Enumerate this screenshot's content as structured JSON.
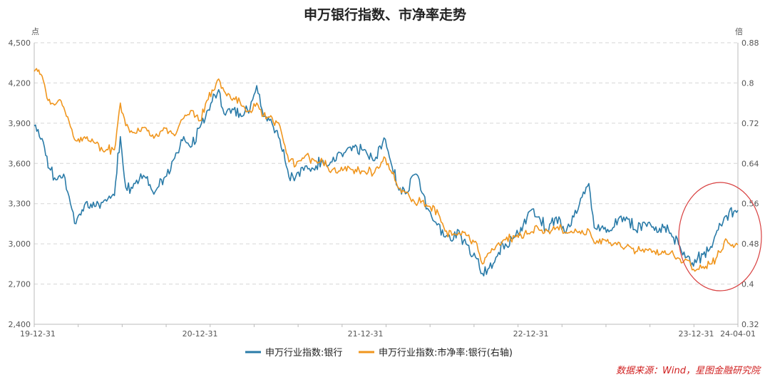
{
  "chart_data": {
    "type": "line",
    "title": "申万银行指数、市净率走势",
    "left_unit": "点",
    "right_unit": "倍",
    "x_tick_labels": [
      "19-12-31",
      "20-12-31",
      "21-12-31",
      "22-12-31",
      "23-12-31",
      "24-04-01"
    ],
    "y_left": {
      "min": 2400,
      "max": 4500,
      "ticks": [
        "2,400",
        "2,700",
        "3,000",
        "3,300",
        "3,600",
        "3,900",
        "4,200",
        "4,500"
      ]
    },
    "y_right": {
      "min": 0.32,
      "max": 0.88,
      "ticks": [
        "0.32",
        "0.4",
        "0.48",
        "0.56",
        "0.64",
        "0.72",
        "0.8",
        "0.88"
      ]
    },
    "grid": "horizontal dashed",
    "legend_position": "bottom",
    "annotation": "red circle highlighting the period 23-12-31 to 24-04-01",
    "series": [
      {
        "name": "申万行业指数:银行",
        "axis": "left",
        "color": "#2a7ba8",
        "points": [
          [
            "19-12-31",
            3880
          ],
          [
            "2020-01-20",
            3760
          ],
          [
            "2020-02-05",
            3550
          ],
          [
            "2020-02-20",
            3480
          ],
          [
            "2020-03-05",
            3520
          ],
          [
            "2020-03-20",
            3300
          ],
          [
            "2020-04-01",
            3150
          ],
          [
            "2020-04-20",
            3290
          ],
          [
            "2020-05-15",
            3280
          ],
          [
            "2020-06-05",
            3330
          ],
          [
            "2020-06-25",
            3360
          ],
          [
            "2020-07-08",
            3800
          ],
          [
            "2020-07-20",
            3420
          ],
          [
            "2020-08-10",
            3450
          ],
          [
            "2020-08-31",
            3500
          ],
          [
            "2020-09-20",
            3370
          ],
          [
            "2020-10-15",
            3500
          ],
          [
            "2020-11-05",
            3640
          ],
          [
            "2020-11-25",
            3800
          ],
          [
            "2020-12-10",
            3720
          ],
          [
            "20-12-31",
            3870
          ],
          [
            "2021-01-15",
            3990
          ],
          [
            "2021-02-10",
            4150
          ],
          [
            "2021-02-25",
            3960
          ],
          [
            "2021-03-15",
            4000
          ],
          [
            "2021-04-01",
            3950
          ],
          [
            "2021-04-20",
            4000
          ],
          [
            "2021-05-05",
            4180
          ],
          [
            "2021-05-20",
            3950
          ],
          [
            "2021-06-05",
            3930
          ],
          [
            "2021-06-25",
            3780
          ],
          [
            "2021-07-15",
            3500
          ],
          [
            "2021-07-30",
            3500
          ],
          [
            "2021-08-20",
            3580
          ],
          [
            "2021-09-10",
            3550
          ],
          [
            "2021-09-25",
            3620
          ],
          [
            "2021-10-15",
            3610
          ],
          [
            "2021-11-05",
            3680
          ],
          [
            "2021-11-25",
            3720
          ],
          [
            "21-12-31",
            3700
          ],
          [
            "2022-01-20",
            3620
          ],
          [
            "2022-02-10",
            3790
          ],
          [
            "2022-02-25",
            3610
          ],
          [
            "2022-03-15",
            3400
          ],
          [
            "2022-04-01",
            3380
          ],
          [
            "2022-04-20",
            3520
          ],
          [
            "2022-05-05",
            3380
          ],
          [
            "2022-05-20",
            3250
          ],
          [
            "2022-06-10",
            3150
          ],
          [
            "2022-06-25",
            3050
          ],
          [
            "2022-07-10",
            3020
          ],
          [
            "2022-07-25",
            3100
          ],
          [
            "2022-08-10",
            3000
          ],
          [
            "2022-08-31",
            2900
          ],
          [
            "2022-09-15",
            2780
          ],
          [
            "2022-09-30",
            2820
          ],
          [
            "2022-10-15",
            2900
          ],
          [
            "2022-11-05",
            3000
          ],
          [
            "2022-11-25",
            3050
          ],
          [
            "22-12-31",
            3250
          ],
          [
            "2023-01-15",
            3200
          ],
          [
            "2023-02-05",
            3100
          ],
          [
            "2023-02-25",
            3200
          ],
          [
            "2023-03-15",
            3090
          ],
          [
            "2023-04-05",
            3200
          ],
          [
            "2023-04-20",
            3340
          ],
          [
            "2023-05-08",
            3450
          ],
          [
            "2023-05-20",
            3120
          ],
          [
            "2023-06-10",
            3110
          ],
          [
            "2023-06-30",
            3120
          ],
          [
            "2023-07-15",
            3200
          ],
          [
            "2023-07-30",
            3200
          ],
          [
            "2023-08-20",
            3100
          ],
          [
            "2023-09-10",
            3150
          ],
          [
            "2023-09-30",
            3100
          ],
          [
            "2023-10-20",
            3120
          ],
          [
            "2023-11-05",
            3080
          ],
          [
            "2023-11-25",
            2980
          ],
          [
            "2023-12-10",
            2900
          ],
          [
            "23-12-31",
            2860
          ],
          [
            "2024-01-15",
            2920
          ],
          [
            "2024-02-01",
            2980
          ],
          [
            "2024-02-15",
            3100
          ],
          [
            "2024-02-28",
            3160
          ],
          [
            "2024-03-15",
            3260
          ],
          [
            "2024-03-20",
            3200
          ],
          [
            "24-04-01",
            3250
          ]
        ]
      },
      {
        "name": "申万行业指数:市净率:银行(右轴)",
        "axis": "right",
        "color": "#f0961e",
        "points": [
          [
            "19-12-31",
            0.823
          ],
          [
            "2020-01-10",
            0.826
          ],
          [
            "2020-01-20",
            0.805
          ],
          [
            "2020-02-05",
            0.758
          ],
          [
            "2020-02-20",
            0.762
          ],
          [
            "2020-03-05",
            0.752
          ],
          [
            "2020-03-20",
            0.713
          ],
          [
            "2020-04-01",
            0.685
          ],
          [
            "2020-04-20",
            0.693
          ],
          [
            "2020-05-15",
            0.68
          ],
          [
            "2020-06-05",
            0.665
          ],
          [
            "2020-06-25",
            0.667
          ],
          [
            "2020-07-08",
            0.76
          ],
          [
            "2020-07-20",
            0.715
          ],
          [
            "2020-08-10",
            0.7
          ],
          [
            "2020-08-31",
            0.712
          ],
          [
            "2020-09-20",
            0.69
          ],
          [
            "2020-10-15",
            0.71
          ],
          [
            "2020-11-05",
            0.695
          ],
          [
            "2020-11-25",
            0.73
          ],
          [
            "2020-12-10",
            0.745
          ],
          [
            "20-12-31",
            0.725
          ],
          [
            "2021-01-15",
            0.765
          ],
          [
            "2021-02-10",
            0.808
          ],
          [
            "2021-02-25",
            0.78
          ],
          [
            "2021-03-15",
            0.77
          ],
          [
            "2021-04-01",
            0.755
          ],
          [
            "2021-04-20",
            0.745
          ],
          [
            "2021-05-05",
            0.76
          ],
          [
            "2021-05-20",
            0.735
          ],
          [
            "2021-06-05",
            0.735
          ],
          [
            "2021-06-25",
            0.715
          ],
          [
            "2021-07-15",
            0.643
          ],
          [
            "2021-07-30",
            0.635
          ],
          [
            "2021-08-20",
            0.655
          ],
          [
            "2021-09-10",
            0.645
          ],
          [
            "2021-09-25",
            0.65
          ],
          [
            "2021-10-15",
            0.622
          ],
          [
            "2021-11-05",
            0.625
          ],
          [
            "2021-11-25",
            0.632
          ],
          [
            "21-12-31",
            0.622
          ],
          [
            "2022-01-20",
            0.622
          ],
          [
            "2022-02-10",
            0.653
          ],
          [
            "2022-02-25",
            0.625
          ],
          [
            "2022-03-15",
            0.59
          ],
          [
            "2022-04-01",
            0.583
          ],
          [
            "2022-04-20",
            0.56
          ],
          [
            "2022-05-05",
            0.565
          ],
          [
            "2022-05-20",
            0.555
          ],
          [
            "2022-06-10",
            0.54
          ],
          [
            "2022-06-25",
            0.505
          ],
          [
            "2022-07-10",
            0.497
          ],
          [
            "2022-07-25",
            0.502
          ],
          [
            "2022-08-10",
            0.497
          ],
          [
            "2022-08-31",
            0.485
          ],
          [
            "2022-09-15",
            0.44
          ],
          [
            "2022-09-30",
            0.462
          ],
          [
            "2022-10-15",
            0.475
          ],
          [
            "2022-11-05",
            0.488
          ],
          [
            "2022-11-25",
            0.495
          ],
          [
            "22-12-31",
            0.503
          ],
          [
            "2023-01-15",
            0.513
          ],
          [
            "2023-02-05",
            0.506
          ],
          [
            "2023-02-25",
            0.512
          ],
          [
            "2023-03-15",
            0.502
          ],
          [
            "2023-04-05",
            0.502
          ],
          [
            "2023-04-20",
            0.5
          ],
          [
            "2023-05-08",
            0.508
          ],
          [
            "2023-05-20",
            0.482
          ],
          [
            "2023-06-10",
            0.488
          ],
          [
            "2023-06-30",
            0.478
          ],
          [
            "2023-07-15",
            0.482
          ],
          [
            "2023-07-30",
            0.475
          ],
          [
            "2023-08-20",
            0.465
          ],
          [
            "2023-09-10",
            0.47
          ],
          [
            "2023-09-30",
            0.465
          ],
          [
            "2023-10-20",
            0.462
          ],
          [
            "2023-11-05",
            0.463
          ],
          [
            "2023-11-25",
            0.45
          ],
          [
            "2023-12-10",
            0.448
          ],
          [
            "23-12-31",
            0.428
          ],
          [
            "2024-01-15",
            0.435
          ],
          [
            "2024-02-01",
            0.44
          ],
          [
            "2024-02-15",
            0.455
          ],
          [
            "2024-02-28",
            0.47
          ],
          [
            "2024-03-05",
            0.49
          ],
          [
            "2024-03-15",
            0.478
          ],
          [
            "2024-03-25",
            0.476
          ],
          [
            "24-04-01",
            0.478
          ]
        ]
      }
    ]
  },
  "source_text": "数据来源：Wind，星图金融研究院"
}
